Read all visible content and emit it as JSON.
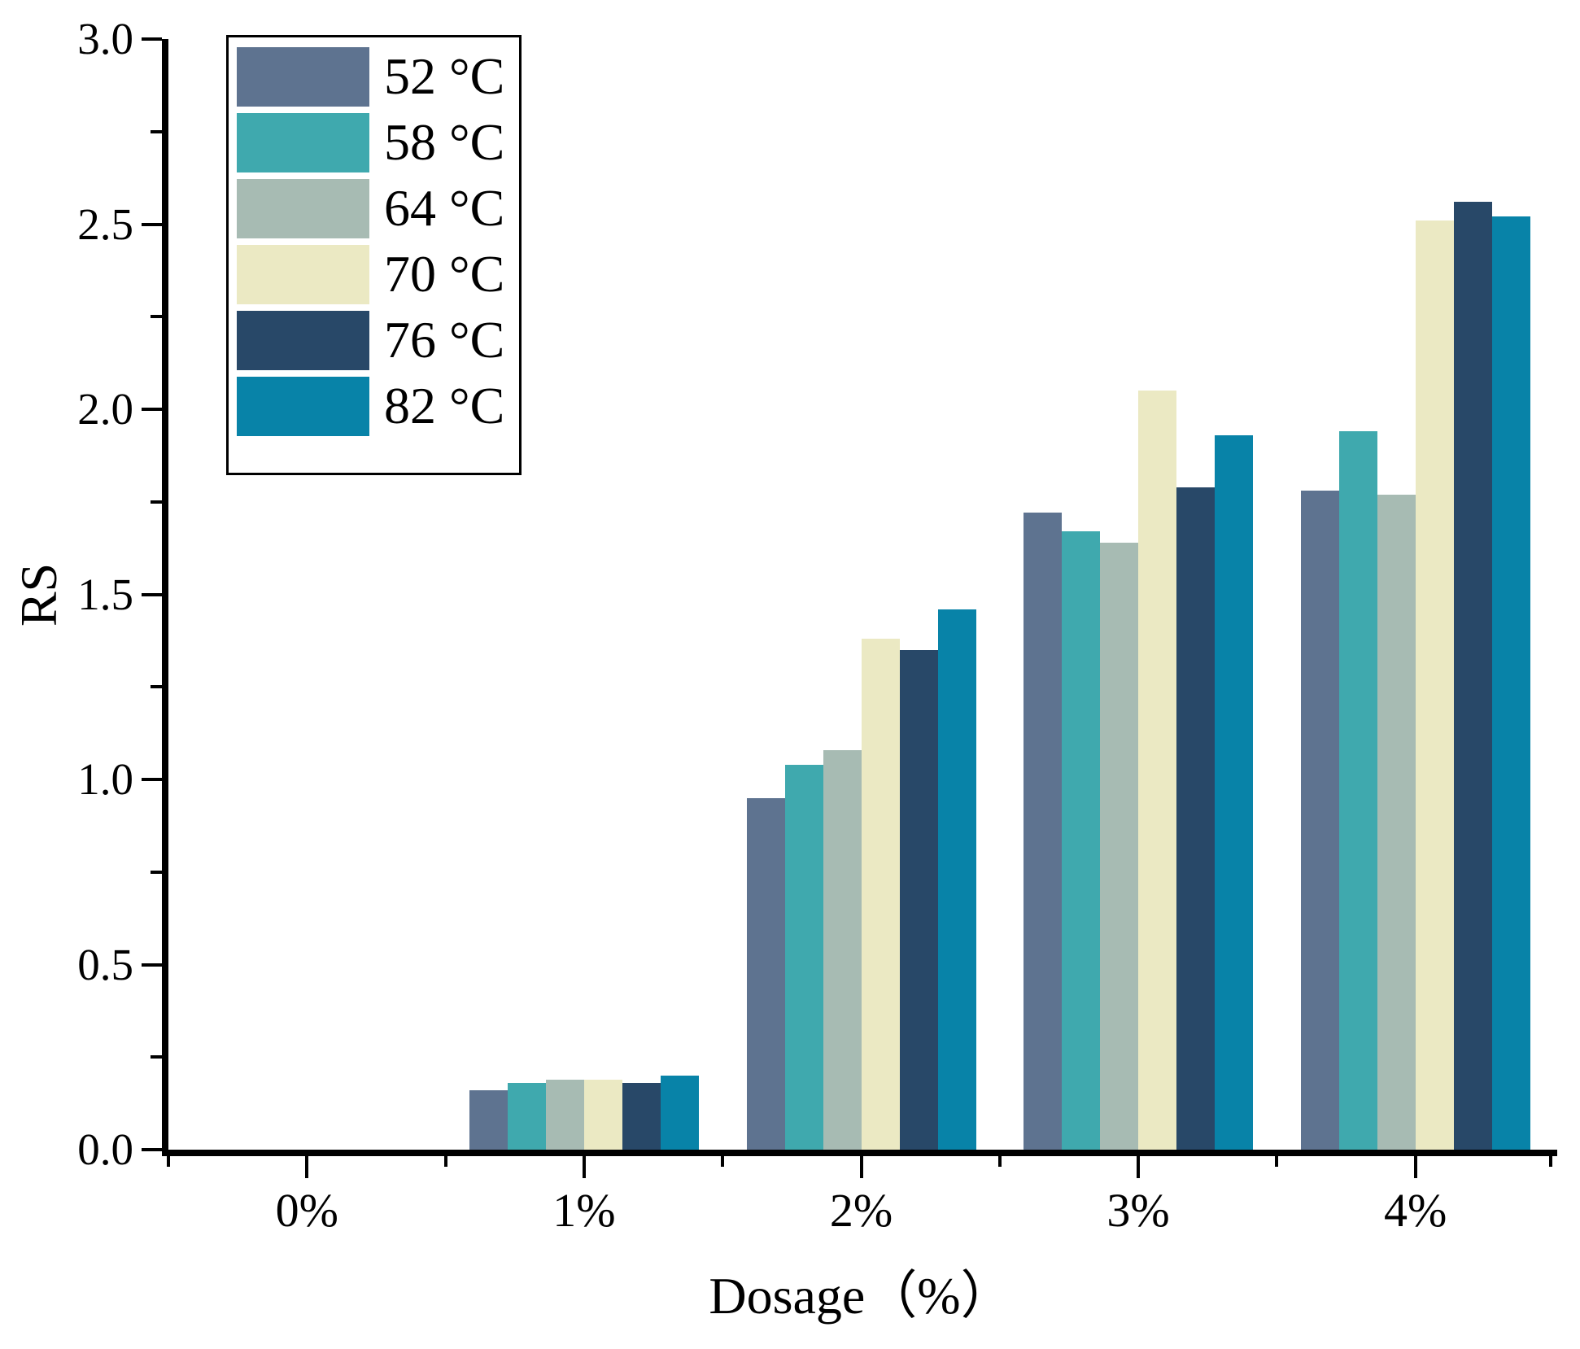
{
  "chart_data": {
    "type": "bar",
    "title": "",
    "xlabel": "Dosage（%）",
    "ylabel": "RS",
    "categories": [
      "0%",
      "1%",
      "2%",
      "3%",
      "4%"
    ],
    "series": [
      {
        "name": "52 °C",
        "color": "#5E7390",
        "values": [
          0,
          0.16,
          0.95,
          1.72,
          1.78
        ]
      },
      {
        "name": "58 °C",
        "color": "#3FA9AE",
        "values": [
          0,
          0.18,
          1.04,
          1.67,
          1.94
        ]
      },
      {
        "name": "64 °C",
        "color": "#A7BBB3",
        "values": [
          0,
          0.19,
          1.08,
          1.64,
          1.77
        ]
      },
      {
        "name": "70 °C",
        "color": "#EBE9C3",
        "values": [
          0,
          0.19,
          1.38,
          2.05,
          2.51
        ]
      },
      {
        "name": "76 °C",
        "color": "#284868",
        "values": [
          0,
          0.18,
          1.35,
          1.79,
          2.56
        ]
      },
      {
        "name": "82 °C",
        "color": "#0883A8",
        "values": [
          0,
          0.2,
          1.46,
          1.93,
          2.52
        ]
      }
    ],
    "ylim": [
      0.0,
      3.0
    ],
    "y_major_ticks": {
      "values": [
        0.0,
        0.5,
        1.0,
        1.5,
        2.0,
        2.5,
        3.0
      ],
      "labels": [
        "0.0",
        "0.5",
        "1.0",
        "1.5",
        "2.0",
        "2.5",
        "3.0"
      ]
    },
    "y_minor_ticks": [
      0.25,
      0.75,
      1.25,
      1.75,
      2.25,
      2.75
    ],
    "grid": false,
    "legend_position": "top-left",
    "axis_color": "#000000",
    "background": "#FFFFFF"
  }
}
